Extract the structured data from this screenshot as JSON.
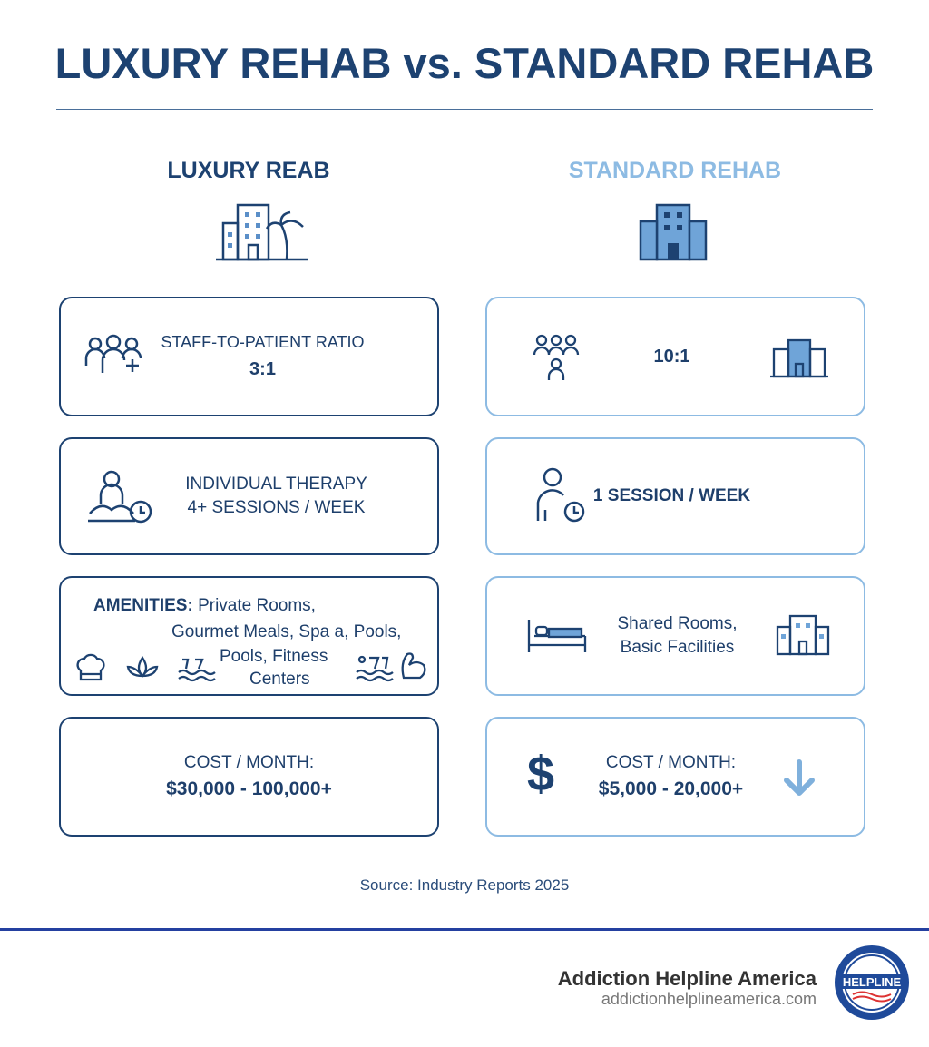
{
  "title": "LUXURY REHAB vs. STANDARD REHAB",
  "colors": {
    "luxury": "#1d4271",
    "standard": "#8dbbe3",
    "accent_line": "#2440a0"
  },
  "luxury": {
    "heading": "LUXURY REAB",
    "icon": "building-palm-icon",
    "ratio": {
      "label": "STAFF-TO-PATIENT RATIO",
      "value": "3:1",
      "icon": "staff-group-icon"
    },
    "therapy": {
      "line1": "INDIVIDUAL THERAPY",
      "line2": "4+ SESSIONS / WEEK",
      "icon": "meditation-clock-icon"
    },
    "amenities": {
      "label": "AMENITIES:",
      "line1": "Private Rooms,",
      "line2": "Gourmet Meals, Spa  a, Pools,",
      "line3": "Pools, Fitness",
      "line4": "Centers",
      "icons": [
        "chef-hat-icon",
        "lotus-icon",
        "pool-icon",
        "swimmer-icon",
        "muscle-icon"
      ]
    },
    "cost": {
      "label": "COST / MONTH:",
      "value": "$30,000 - 100,000+"
    }
  },
  "standard": {
    "heading": "STANDARD REHAB",
    "icon": "building-icon",
    "ratio": {
      "value": "10:1",
      "icons": [
        "people-group-icon",
        "building-icon"
      ]
    },
    "therapy": {
      "value": "1 SESSION / WEEK",
      "icon": "person-clock-icon"
    },
    "rooms": {
      "line1": "Shared Rooms,",
      "line2": "Basic Facilities",
      "icons": [
        "bed-icon",
        "building-icon"
      ]
    },
    "cost": {
      "label": "COST / MONTH:",
      "value": "$5,000 - 20,000+",
      "icons": [
        "dollar-icon",
        "arrow-down-icon"
      ]
    }
  },
  "source": "Source: Industry Reports 2025",
  "footer": {
    "brand": "Addiction Helpline America",
    "url": "addictionhelplineamerica.com",
    "logo_text": [
      "ADDICTION",
      "HELPLINE",
      "AMERICA"
    ]
  }
}
